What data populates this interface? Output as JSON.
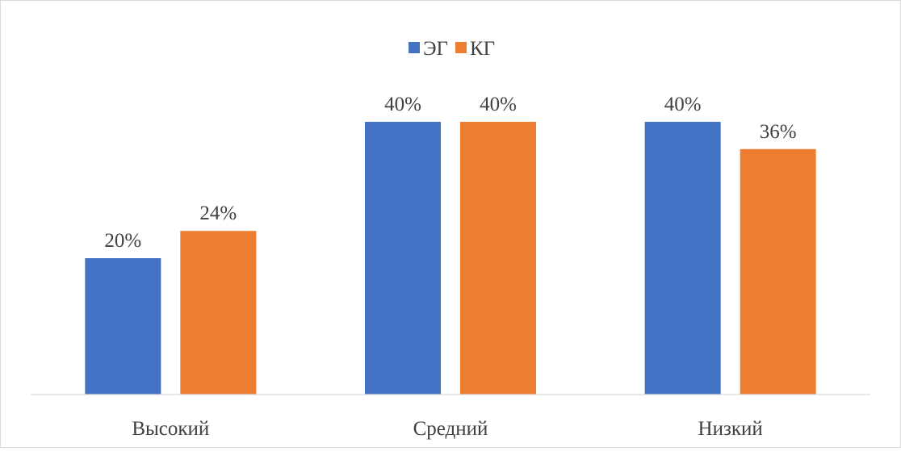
{
  "chart_data": {
    "type": "bar",
    "title": "",
    "xlabel": "",
    "ylabel": "",
    "categories": [
      "Высокий",
      "Средний",
      "Низкий"
    ],
    "series": [
      {
        "name": "ЭГ",
        "color": "#4472c4",
        "values": [
          20,
          40,
          40
        ],
        "labels": [
          "20%",
          "40%",
          "40%"
        ]
      },
      {
        "name": "КГ",
        "color": "#ed7d31",
        "values": [
          24,
          40,
          36
        ],
        "labels": [
          "24%",
          "40%",
          "36%"
        ]
      }
    ],
    "unit": "%",
    "ylim": [
      0,
      45
    ],
    "legend_position": "top-center",
    "grid": false,
    "data_labels": true
  }
}
